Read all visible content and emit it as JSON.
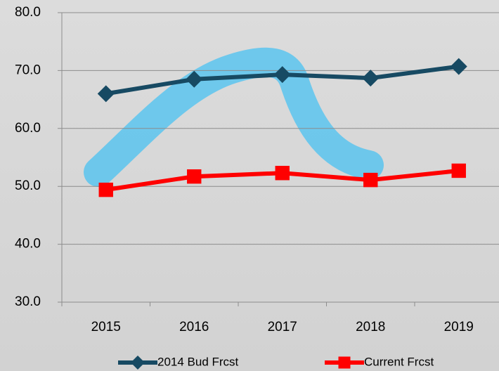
{
  "chart_data": {
    "type": "line",
    "categories": [
      "2015",
      "2016",
      "2017",
      "2018",
      "2019"
    ],
    "series": [
      {
        "name": "2014 Bud Frcst",
        "color": "#174a63",
        "marker": "diamond",
        "values": [
          66.0,
          68.5,
          69.3,
          68.7,
          70.7
        ]
      },
      {
        "name": "Current Frcst",
        "color": "#ff0000",
        "marker": "square",
        "values": [
          49.4,
          51.7,
          52.3,
          51.1,
          52.7
        ]
      }
    ],
    "ylim": [
      30,
      80
    ],
    "yticks": [
      {
        "value": 30,
        "label": "30.0"
      },
      {
        "value": 40,
        "label": "40.0"
      },
      {
        "value": 50,
        "label": "50.0"
      },
      {
        "value": 60,
        "label": "60.0"
      },
      {
        "value": 70,
        "label": "70.0"
      },
      {
        "value": 80,
        "label": "80.0"
      }
    ],
    "grid": true,
    "legend": "bottom"
  }
}
